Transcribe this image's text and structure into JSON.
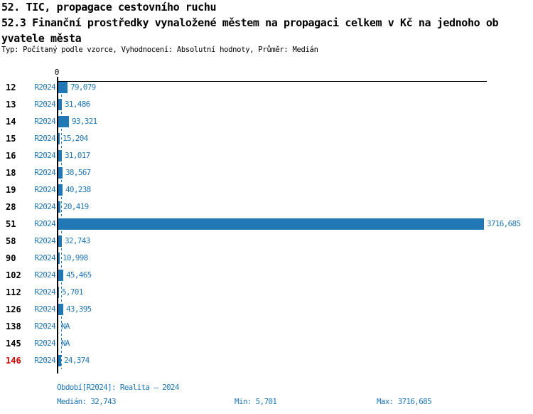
{
  "header": {
    "title_line1": "52. TIC, propagace cestovního ruchu",
    "title_line2": "52.3 Finanční prostředky vynaložené městem na propagaci celkem v Kč na jednoho ob",
    "title_line3": "yvatele města",
    "meta": "Typ: Počítaný podle vzorce, Vyhodnocení: Absolutní hodnoty, Průměr: Medián"
  },
  "axis": {
    "zero_label": "0"
  },
  "rows": [
    {
      "id": "12",
      "period": "R2024",
      "value_label": "79,079",
      "value": 79.079,
      "highlight": false
    },
    {
      "id": "13",
      "period": "R2024",
      "value_label": "31,486",
      "value": 31.486,
      "highlight": false
    },
    {
      "id": "14",
      "period": "R2024",
      "value_label": "93,321",
      "value": 93.321,
      "highlight": false
    },
    {
      "id": "15",
      "period": "R2024",
      "value_label": "15,204",
      "value": 15.204,
      "highlight": false
    },
    {
      "id": "16",
      "period": "R2024",
      "value_label": "31,017",
      "value": 31.017,
      "highlight": false
    },
    {
      "id": "18",
      "period": "R2024",
      "value_label": "38,567",
      "value": 38.567,
      "highlight": false
    },
    {
      "id": "19",
      "period": "R2024",
      "value_label": "40,238",
      "value": 40.238,
      "highlight": false
    },
    {
      "id": "28",
      "period": "R2024",
      "value_label": "20,419",
      "value": 20.419,
      "highlight": false
    },
    {
      "id": "51",
      "period": "R2024",
      "value_label": "3716,685",
      "value": 3716.685,
      "highlight": false
    },
    {
      "id": "58",
      "period": "R2024",
      "value_label": "32,743",
      "value": 32.743,
      "highlight": false
    },
    {
      "id": "90",
      "period": "R2024",
      "value_label": "10,998",
      "value": 10.998,
      "highlight": false
    },
    {
      "id": "102",
      "period": "R2024",
      "value_label": "45,465",
      "value": 45.465,
      "highlight": false
    },
    {
      "id": "112",
      "period": "R2024",
      "value_label": "5,701",
      "value": 5.701,
      "highlight": false
    },
    {
      "id": "126",
      "period": "R2024",
      "value_label": "43,395",
      "value": 43.395,
      "highlight": false
    },
    {
      "id": "138",
      "period": "R2024",
      "value_label": "NA",
      "value": null,
      "highlight": false
    },
    {
      "id": "145",
      "period": "R2024",
      "value_label": "NA",
      "value": null,
      "highlight": false
    },
    {
      "id": "146",
      "period": "R2024",
      "value_label": "24,374",
      "value": 24.374,
      "highlight": true
    }
  ],
  "footer": {
    "period": "Období[R2024]: Realita – 2024",
    "median": "Medián: 32,743",
    "min": "Min: 5,701",
    "max": "Max: 3716,685"
  },
  "colors": {
    "bar_blue": "#2277B5",
    "text_blue": "#2277B5",
    "highlight_red": "#D40000",
    "axis_black": "#000000"
  },
  "chart_data": {
    "type": "bar",
    "orientation": "horizontal",
    "title": "52.3 Finanční prostředky vynaložené městem na propagaci celkem v Kč na jednoho obyvatele města",
    "supertitle": "52. TIC, propagace cestovního ruchu",
    "subtitle": "Typ: Počítaný podle vzorce, Vyhodnocení: Absolutní hodnoty, Průměr: Medián",
    "categories": [
      "12",
      "13",
      "14",
      "15",
      "16",
      "18",
      "19",
      "28",
      "51",
      "58",
      "90",
      "102",
      "112",
      "126",
      "138",
      "145",
      "146"
    ],
    "series": [
      {
        "name": "R2024",
        "values": [
          79.079,
          31.486,
          93.321,
          15.204,
          31.017,
          38.567,
          40.238,
          20.419,
          3716.685,
          32.743,
          10.998,
          45.465,
          5.701,
          43.395,
          null,
          null,
          24.374
        ]
      }
    ],
    "value_labels": [
      "79,079",
      "31,486",
      "93,321",
      "15,204",
      "31,017",
      "38,567",
      "40,238",
      "20,419",
      "3716,685",
      "32,743",
      "10,998",
      "45,465",
      "5,701",
      "43,395",
      "NA",
      "NA",
      "24,374"
    ],
    "xlim": [
      0,
      3716.685
    ],
    "x_ticks": [
      "0"
    ],
    "median": 32.743,
    "min": 5.701,
    "max": 3716.685,
    "median_line": true,
    "legend_position": "none",
    "grid": false,
    "highlighted_category": "146"
  }
}
